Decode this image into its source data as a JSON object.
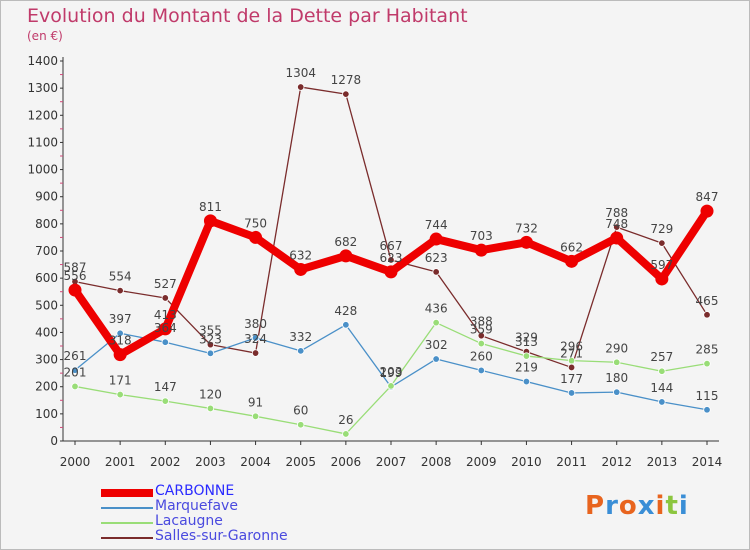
{
  "title": "Evolution du Montant de la Dette par Habitant",
  "subtitle": "(en €)",
  "logo": {
    "text": "Proxiti",
    "colors": [
      "#e8641e",
      "#3a8ed6",
      "#e8641e",
      "#3a8ed6",
      "#e8641e",
      "#8cc63f",
      "#3a8ed6"
    ]
  },
  "chart_data": {
    "type": "line",
    "title": "Evolution du Montant de la Dette par Habitant",
    "ylabel": "(en €)",
    "x": [
      "2000",
      "2001",
      "2002",
      "2003",
      "2004",
      "2005",
      "2006",
      "2007",
      "2008",
      "2009",
      "2010",
      "2011",
      "2012",
      "2013",
      "2014"
    ],
    "ylim": [
      0,
      1400
    ],
    "yticks": [
      0,
      100,
      200,
      300,
      400,
      500,
      600,
      700,
      800,
      900,
      1000,
      1100,
      1200,
      1300,
      1400
    ],
    "grid": false,
    "legend_position": "bottom",
    "series": [
      {
        "name": "CARBONNE",
        "color": "#ee0000",
        "values": [
          556,
          318,
          413,
          811,
          750,
          632,
          682,
          623,
          744,
          703,
          732,
          662,
          748,
          597,
          847
        ]
      },
      {
        "name": "Marquefave",
        "color": "#4a90c8",
        "values": [
          261,
          397,
          364,
          323,
          380,
          332,
          428,
          199,
          302,
          260,
          219,
          177,
          180,
          144,
          115
        ]
      },
      {
        "name": "Lacaugne",
        "color": "#99dd77",
        "values": [
          201,
          171,
          147,
          120,
          91,
          60,
          26,
          203,
          436,
          359,
          313,
          296,
          290,
          257,
          285
        ]
      },
      {
        "name": "Salles-sur-Garonne",
        "color": "#7a2c2c",
        "values": [
          587,
          554,
          527,
          355,
          324,
          1304,
          1278,
          667,
          623,
          388,
          329,
          271,
          788,
          729,
          465
        ]
      }
    ]
  }
}
